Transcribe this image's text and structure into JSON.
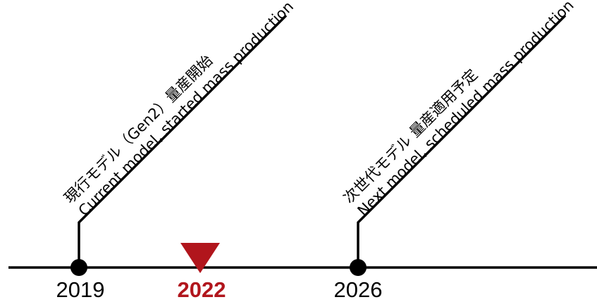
{
  "timeline": {
    "current_year": "2022",
    "milestones": [
      {
        "year": "2019",
        "label_jp": "現行モデル（Gen2）量産開始",
        "label_en": "Current model, started mass production"
      },
      {
        "year": "2026",
        "label_jp": "次世代モデル 量産適用予定",
        "label_en": "Next model, scheduled mass production"
      }
    ]
  },
  "colors": {
    "line": "#000000",
    "highlight": "#b1151c"
  },
  "icons": {
    "current_marker": "triangle-down-icon",
    "milestone_dot": "filled-circle-icon"
  }
}
